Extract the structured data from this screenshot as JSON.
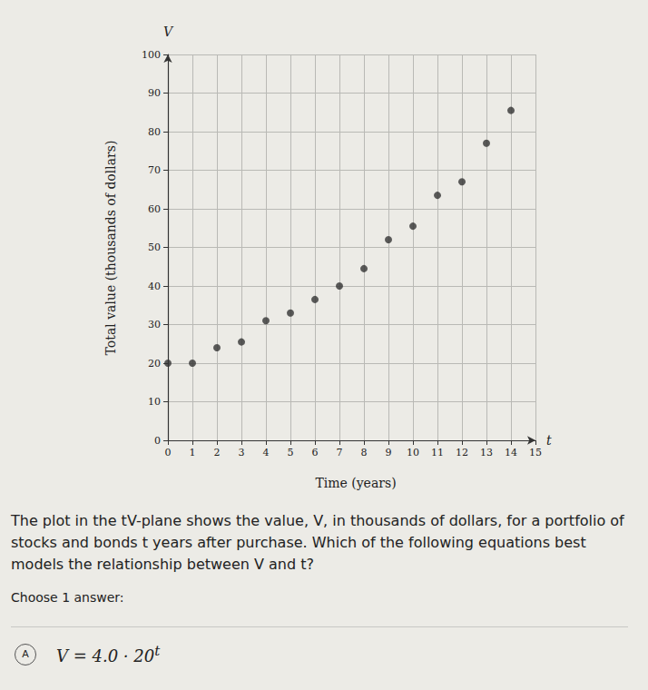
{
  "chart_data": {
    "type": "scatter",
    "x_name": "t",
    "y_name": "V",
    "x_label": "Time (years)",
    "y_label": "Total value (thousands of dollars)",
    "x": [
      0,
      1,
      2,
      3,
      4,
      5,
      6,
      7,
      8,
      9,
      10,
      11,
      12,
      13,
      14
    ],
    "values": [
      20,
      20,
      24,
      25.5,
      31,
      33,
      36.5,
      40,
      44.5,
      52,
      55.5,
      63.5,
      67,
      77,
      85.5
    ],
    "color": "#333333",
    "marker": "circle",
    "xlim": [
      0,
      15
    ],
    "xticks": [
      0,
      1,
      2,
      3,
      4,
      5,
      6,
      7,
      8,
      9,
      10,
      11,
      12,
      13,
      14,
      15
    ],
    "ylim": [
      0,
      100
    ],
    "yticks": [
      0,
      10,
      20,
      30,
      40,
      50,
      60,
      70,
      80,
      90,
      100
    ],
    "grid": true
  },
  "question": {
    "text": "The plot in the tV-plane shows the value, V, in thousands of dollars, for a portfolio of stocks and bonds t years after purchase. Which of the following equations best models the relationship between V and t?",
    "instruction": "Choose 1 answer:",
    "options": [
      {
        "label": "A",
        "base": "V = 4.0 · 20",
        "exponent": "t"
      }
    ]
  }
}
